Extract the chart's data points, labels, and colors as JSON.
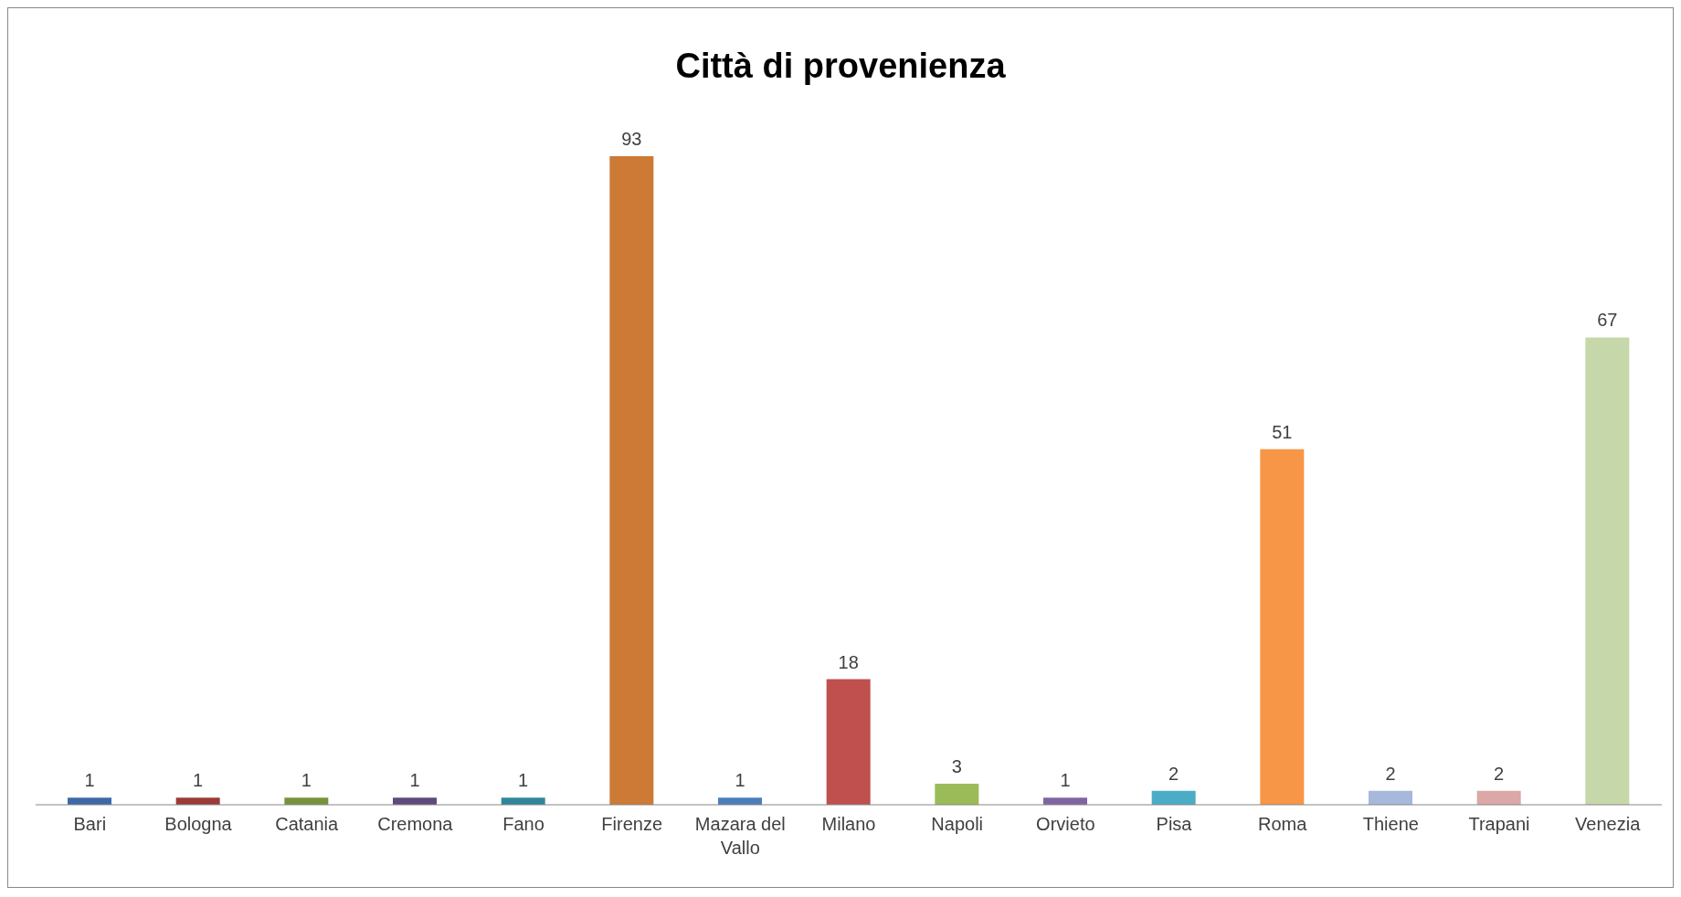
{
  "chart_data": {
    "type": "bar",
    "title": "Città di provenienza",
    "categories": [
      "Bari",
      "Bologna",
      "Catania",
      "Cremona",
      "Fano",
      "Firenze",
      "Mazara del Vallo",
      "Milano",
      "Napoli",
      "Orvieto",
      "Pisa",
      "Roma",
      "Thiene",
      "Trapani",
      "Venezia"
    ],
    "values": [
      1,
      1,
      1,
      1,
      1,
      93,
      1,
      18,
      3,
      1,
      2,
      51,
      2,
      2,
      67
    ],
    "colors": [
      "#3d6aa6",
      "#9b3a38",
      "#76933c",
      "#5f4a7d",
      "#31869b",
      "#cc7a35",
      "#4a7ebb",
      "#c0504d",
      "#9bbb59",
      "#8064a2",
      "#4bacc6",
      "#f79646",
      "#a6b9dc",
      "#dba8a7",
      "#c6d7a9"
    ],
    "data_labels": true,
    "grid": false,
    "legend": false
  }
}
